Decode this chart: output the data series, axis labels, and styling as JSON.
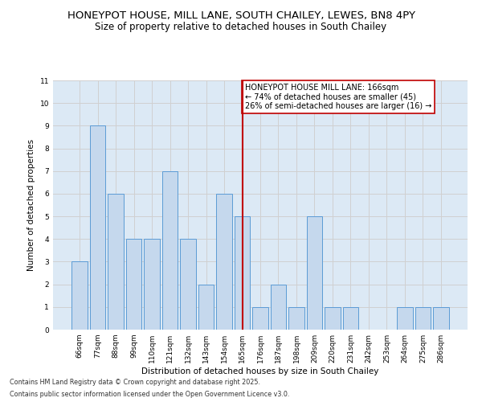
{
  "title": "HONEYPOT HOUSE, MILL LANE, SOUTH CHAILEY, LEWES, BN8 4PY",
  "subtitle": "Size of property relative to detached houses in South Chailey",
  "xlabel": "Distribution of detached houses by size in South Chailey",
  "ylabel": "Number of detached properties",
  "categories": [
    "66sqm",
    "77sqm",
    "88sqm",
    "99sqm",
    "110sqm",
    "121sqm",
    "132sqm",
    "143sqm",
    "154sqm",
    "165sqm",
    "176sqm",
    "187sqm",
    "198sqm",
    "209sqm",
    "220sqm",
    "231sqm",
    "242sqm",
    "253sqm",
    "264sqm",
    "275sqm",
    "286sqm"
  ],
  "values": [
    3,
    9,
    6,
    4,
    4,
    7,
    4,
    2,
    6,
    5,
    1,
    2,
    1,
    5,
    1,
    1,
    0,
    0,
    1,
    1,
    1
  ],
  "bar_color": "#c5d8ed",
  "bar_edge_color": "#5b9bd5",
  "highlight_bar_index": 9,
  "annotation_text": "HONEYPOT HOUSE MILL LANE: 166sqm\n← 74% of detached houses are smaller (45)\n26% of semi-detached houses are larger (16) →",
  "annotation_box_color": "#c00000",
  "ylim": [
    0,
    11
  ],
  "yticks": [
    0,
    1,
    2,
    3,
    4,
    5,
    6,
    7,
    8,
    9,
    10,
    11
  ],
  "grid_color": "#d0d0d0",
  "bg_color": "#dce9f5",
  "footer1": "Contains HM Land Registry data © Crown copyright and database right 2025.",
  "footer2": "Contains public sector information licensed under the Open Government Licence v3.0.",
  "title_fontsize": 9.5,
  "subtitle_fontsize": 8.5,
  "tick_fontsize": 6.5,
  "label_fontsize": 7.5,
  "annotation_fontsize": 7
}
